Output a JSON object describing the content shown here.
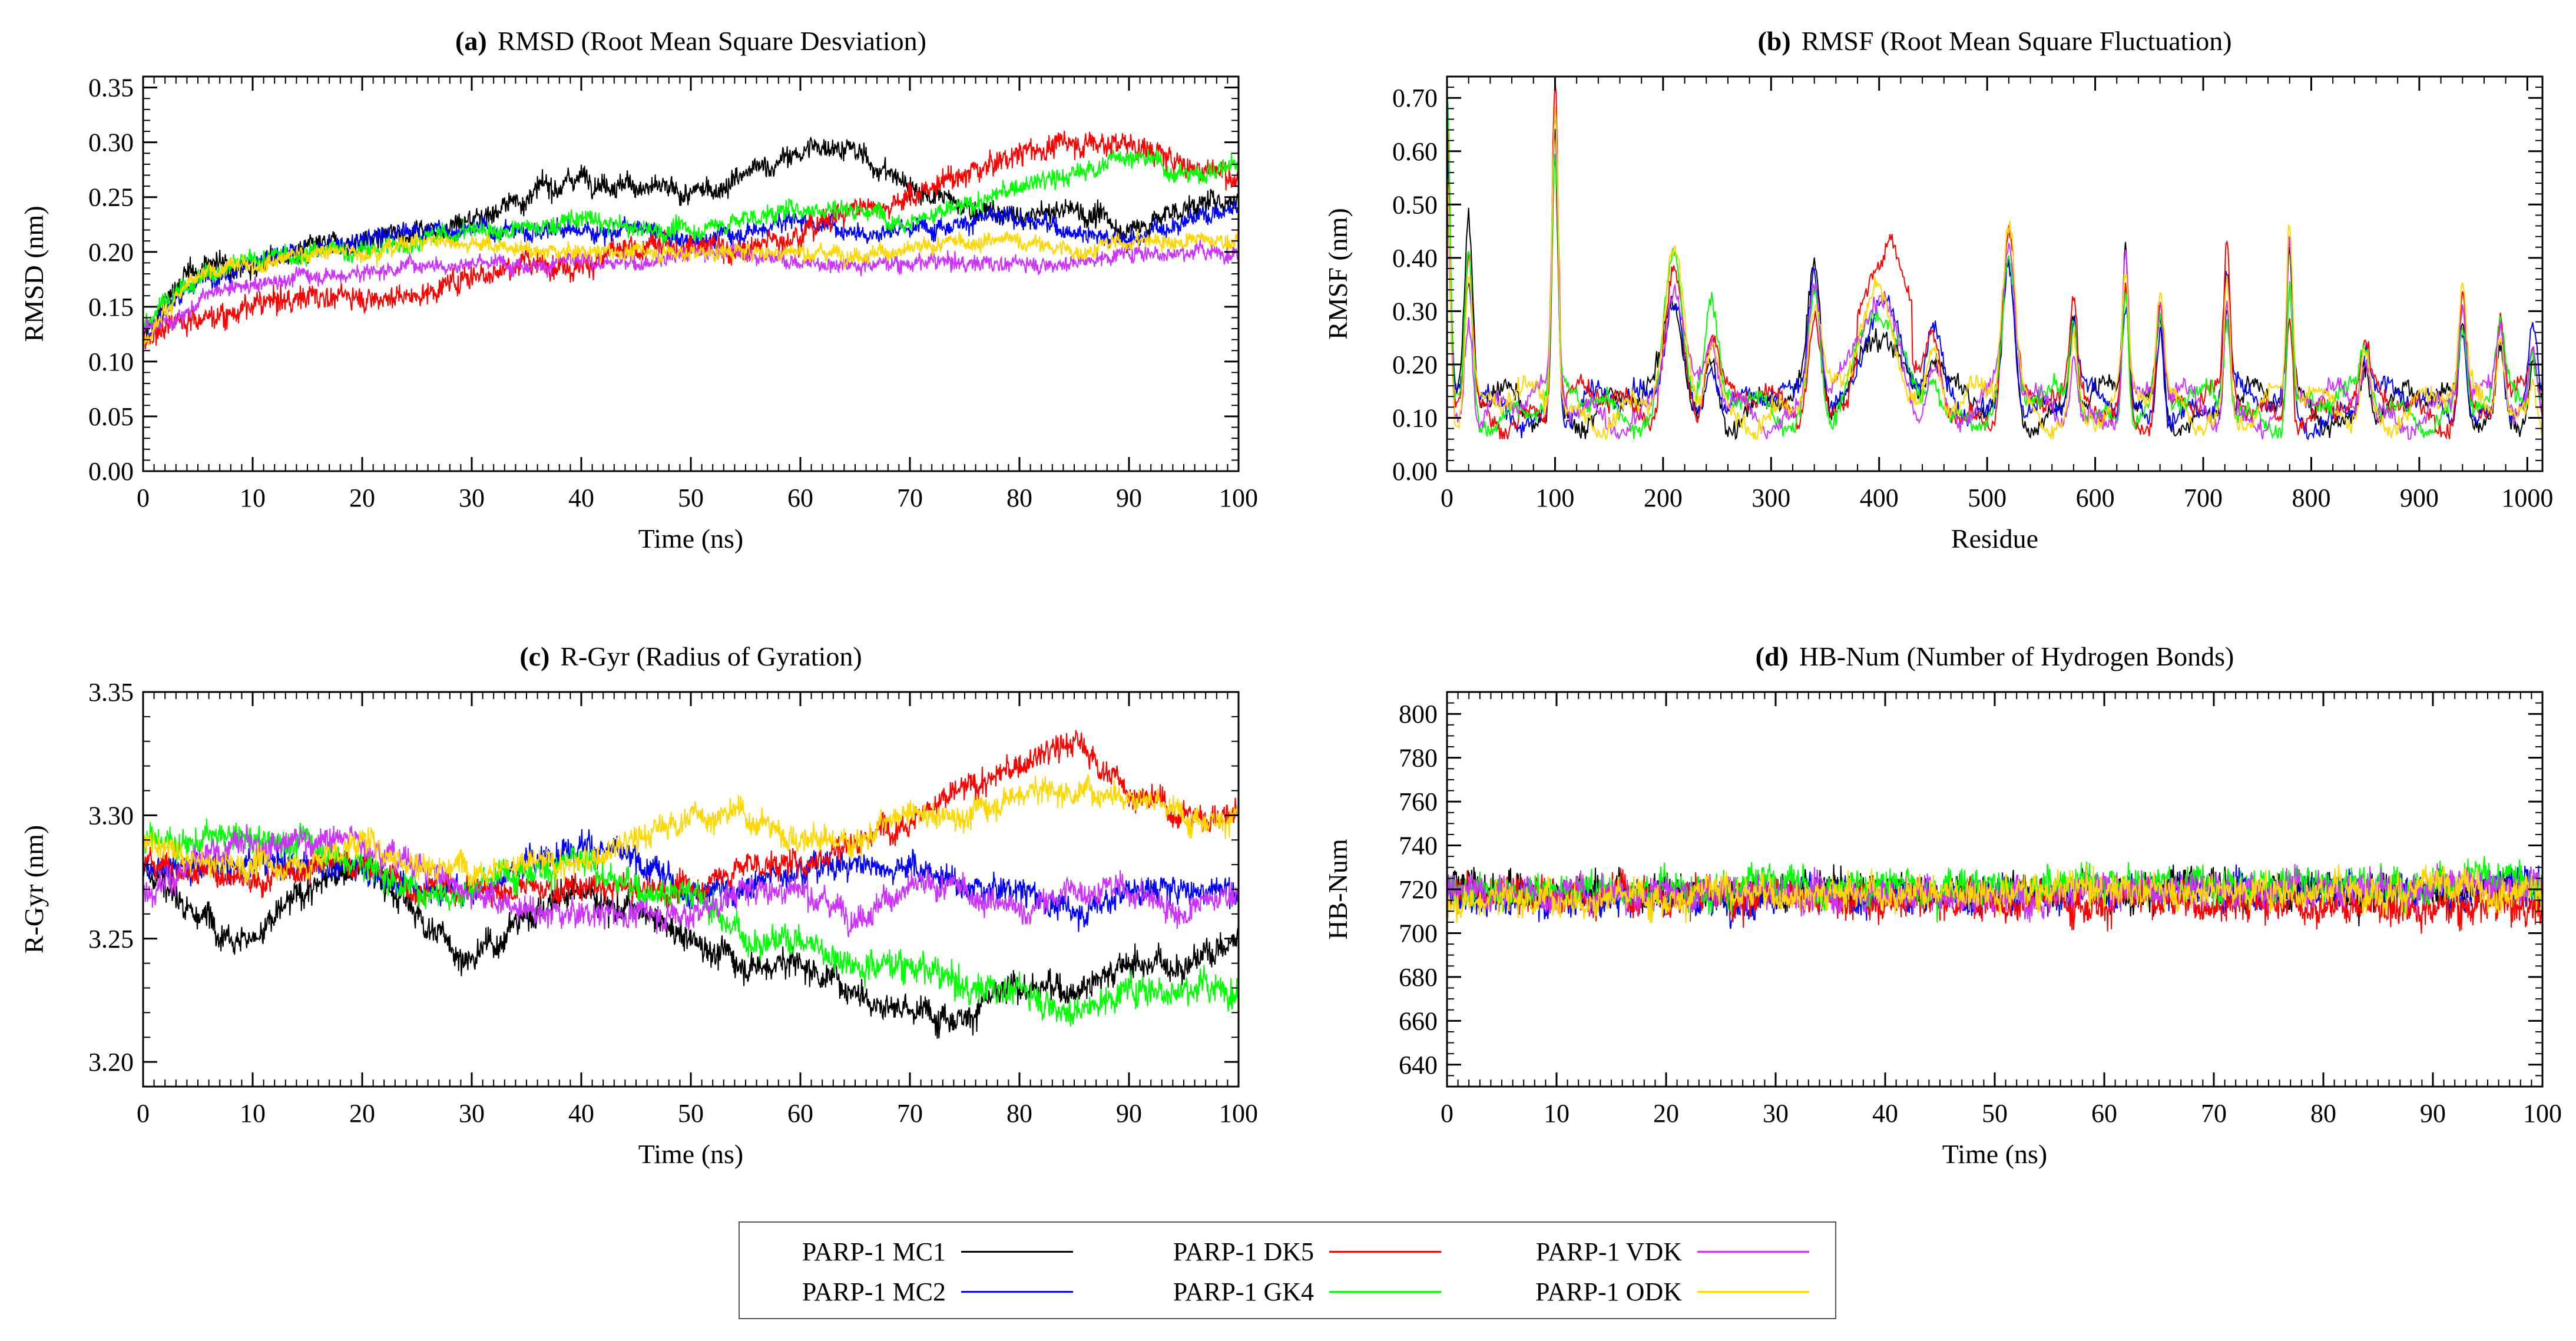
{
  "chart_data": [
    {
      "id": "a",
      "type": "line",
      "panel_label": "(a)",
      "title": "RMSD (Root Mean Square Desviation)",
      "xlabel": "Time (ns)",
      "ylabel": "RMSD (nm)",
      "xlim": [
        0,
        100
      ],
      "ylim": [
        0,
        0.36
      ],
      "xticks": [
        0,
        10,
        20,
        30,
        40,
        50,
        60,
        70,
        80,
        90,
        100
      ],
      "yticks": [
        0.0,
        0.05,
        0.1,
        0.15,
        0.2,
        0.25,
        0.3,
        0.35
      ],
      "ytick_labels": [
        "0.00",
        "0.05",
        "0.10",
        "0.15",
        "0.20",
        "0.25",
        "0.30",
        "0.35"
      ],
      "x_minor_step": 1,
      "y_minor_step": 0.01,
      "grid": false,
      "series": [
        {
          "name": "PARP-1 MC1",
          "x": [
            0,
            3,
            6,
            10,
            15,
            20,
            25,
            30,
            35,
            40,
            45,
            50,
            55,
            60,
            63,
            65,
            70,
            75,
            80,
            85,
            90,
            95,
            100
          ],
          "values": [
            0.12,
            0.17,
            0.19,
            0.19,
            0.2,
            0.21,
            0.22,
            0.23,
            0.25,
            0.27,
            0.26,
            0.25,
            0.27,
            0.29,
            0.3,
            0.29,
            0.26,
            0.24,
            0.23,
            0.24,
            0.22,
            0.24,
            0.25
          ],
          "noise": 0.015
        },
        {
          "name": "PARP-1 MC2",
          "x": [
            0,
            3,
            6,
            10,
            15,
            20,
            25,
            30,
            35,
            40,
            45,
            50,
            55,
            60,
            65,
            70,
            75,
            80,
            85,
            90,
            95,
            100
          ],
          "values": [
            0.12,
            0.16,
            0.18,
            0.19,
            0.2,
            0.21,
            0.22,
            0.22,
            0.22,
            0.22,
            0.22,
            0.21,
            0.22,
            0.23,
            0.22,
            0.22,
            0.23,
            0.23,
            0.22,
            0.21,
            0.23,
            0.24
          ],
          "noise": 0.013
        },
        {
          "name": "PARP-1 DK5",
          "x": [
            0,
            3,
            6,
            10,
            15,
            20,
            25,
            30,
            35,
            40,
            45,
            50,
            55,
            60,
            65,
            70,
            75,
            80,
            85,
            90,
            95,
            100
          ],
          "values": [
            0.12,
            0.14,
            0.14,
            0.15,
            0.16,
            0.16,
            0.16,
            0.18,
            0.19,
            0.19,
            0.2,
            0.21,
            0.2,
            0.22,
            0.24,
            0.25,
            0.27,
            0.29,
            0.3,
            0.3,
            0.28,
            0.27
          ],
          "noise": 0.016
        },
        {
          "name": "PARP-1 GK4",
          "x": [
            0,
            3,
            6,
            10,
            15,
            20,
            25,
            30,
            35,
            40,
            45,
            50,
            55,
            60,
            65,
            70,
            75,
            80,
            85,
            90,
            95,
            100
          ],
          "values": [
            0.13,
            0.17,
            0.18,
            0.19,
            0.2,
            0.2,
            0.21,
            0.22,
            0.22,
            0.23,
            0.22,
            0.22,
            0.23,
            0.24,
            0.24,
            0.23,
            0.24,
            0.26,
            0.27,
            0.29,
            0.27,
            0.28
          ],
          "noise": 0.013
        },
        {
          "name": "PARP-1 VDK",
          "x": [
            0,
            3,
            6,
            10,
            15,
            20,
            25,
            30,
            35,
            40,
            45,
            50,
            55,
            60,
            65,
            70,
            75,
            80,
            85,
            90,
            95,
            100
          ],
          "values": [
            0.13,
            0.14,
            0.16,
            0.17,
            0.18,
            0.18,
            0.19,
            0.19,
            0.19,
            0.19,
            0.19,
            0.2,
            0.2,
            0.19,
            0.19,
            0.19,
            0.19,
            0.19,
            0.19,
            0.2,
            0.2,
            0.2
          ],
          "noise": 0.011
        },
        {
          "name": "PARP-1 ODK",
          "x": [
            0,
            3,
            6,
            10,
            15,
            20,
            25,
            30,
            35,
            40,
            45,
            50,
            55,
            60,
            65,
            70,
            75,
            80,
            85,
            90,
            95,
            100
          ],
          "values": [
            0.12,
            0.16,
            0.18,
            0.19,
            0.2,
            0.2,
            0.21,
            0.21,
            0.2,
            0.2,
            0.2,
            0.2,
            0.2,
            0.2,
            0.2,
            0.2,
            0.21,
            0.21,
            0.2,
            0.21,
            0.21,
            0.21
          ],
          "noise": 0.011
        }
      ]
    },
    {
      "id": "b",
      "type": "line",
      "panel_label": "(b)",
      "title": "RMSF (Root Mean Square Fluctuation)",
      "xlabel": "Residue",
      "ylabel": "RMSF (nm)",
      "xlim": [
        0,
        1014
      ],
      "ylim": [
        0,
        0.74
      ],
      "xticks": [
        0,
        100,
        200,
        300,
        400,
        500,
        600,
        700,
        800,
        900,
        1000
      ],
      "yticks": [
        0.0,
        0.1,
        0.2,
        0.3,
        0.4,
        0.5,
        0.6,
        0.7
      ],
      "ytick_labels": [
        "0.00",
        "0.10",
        "0.20",
        "0.30",
        "0.40",
        "0.50",
        "0.60",
        "0.70"
      ],
      "x_minor_step": 20,
      "y_minor_step": 0.02,
      "grid": false,
      "baseline": 0.12,
      "peaks": [
        {
          "x": 0,
          "y": 0.62,
          "w": 4
        },
        {
          "x": 20,
          "y": 0.4,
          "w": 5
        },
        {
          "x": 100,
          "y": 0.65,
          "w": 4
        },
        {
          "x": 210,
          "y": 0.38,
          "w": 12
        },
        {
          "x": 245,
          "y": 0.25,
          "w": 8
        },
        {
          "x": 340,
          "y": 0.35,
          "w": 8
        },
        {
          "x": 400,
          "y": 0.33,
          "w": 25
        },
        {
          "x": 450,
          "y": 0.22,
          "w": 10
        },
        {
          "x": 520,
          "y": 0.42,
          "w": 8
        },
        {
          "x": 580,
          "y": 0.28,
          "w": 5
        },
        {
          "x": 628,
          "y": 0.38,
          "w": 4
        },
        {
          "x": 660,
          "y": 0.3,
          "w": 5
        },
        {
          "x": 722,
          "y": 0.36,
          "w": 4
        },
        {
          "x": 780,
          "y": 0.4,
          "w": 4
        },
        {
          "x": 850,
          "y": 0.22,
          "w": 6
        },
        {
          "x": 940,
          "y": 0.3,
          "w": 5
        },
        {
          "x": 975,
          "y": 0.26,
          "w": 5
        },
        {
          "x": 1005,
          "y": 0.22,
          "w": 5
        }
      ],
      "series": [
        {
          "name": "PARP-1 MC1",
          "noise": 0.03
        },
        {
          "name": "PARP-1 MC2",
          "noise": 0.03
        },
        {
          "name": "PARP-1 DK5",
          "noise": 0.03,
          "x": [
            380,
            400,
            410,
            430
          ],
          "values": [
            0.3,
            0.38,
            0.44,
            0.32
          ]
        },
        {
          "name": "PARP-1 GK4",
          "noise": 0.03
        },
        {
          "name": "PARP-1 VDK",
          "noise": 0.03
        },
        {
          "name": "PARP-1 ODK",
          "noise": 0.03
        }
      ]
    },
    {
      "id": "c",
      "type": "line",
      "panel_label": "(c)",
      "title": "R-Gyr (Radius of Gyration)",
      "xlabel": "Time (ns)",
      "ylabel": "R-Gyr (nm)",
      "xlim": [
        0,
        100
      ],
      "ylim": [
        3.19,
        3.35
      ],
      "xticks": [
        0,
        10,
        20,
        30,
        40,
        50,
        60,
        70,
        80,
        90,
        100
      ],
      "yticks": [
        3.2,
        3.25,
        3.3,
        3.35
      ],
      "ytick_labels": [
        "3.20",
        "3.25",
        "3.30",
        "3.35"
      ],
      "x_minor_step": 1,
      "y_minor_step": 0.01,
      "grid": false,
      "series": [
        {
          "name": "PARP-1 MC1",
          "x": [
            0,
            5,
            10,
            15,
            20,
            25,
            30,
            35,
            40,
            45,
            50,
            55,
            60,
            65,
            70,
            75,
            80,
            85,
            90,
            95,
            100
          ],
          "values": [
            3.28,
            3.26,
            3.25,
            3.27,
            3.28,
            3.26,
            3.24,
            3.26,
            3.27,
            3.26,
            3.25,
            3.24,
            3.24,
            3.23,
            3.22,
            3.22,
            3.23,
            3.23,
            3.24,
            3.24,
            3.25
          ],
          "noise": 0.009
        },
        {
          "name": "PARP-1 MC2",
          "x": [
            0,
            5,
            10,
            15,
            20,
            25,
            30,
            35,
            40,
            45,
            50,
            55,
            60,
            65,
            70,
            75,
            80,
            85,
            90,
            95,
            100
          ],
          "values": [
            3.28,
            3.28,
            3.28,
            3.28,
            3.28,
            3.27,
            3.27,
            3.28,
            3.29,
            3.28,
            3.27,
            3.27,
            3.28,
            3.28,
            3.28,
            3.27,
            3.27,
            3.26,
            3.27,
            3.27,
            3.27
          ],
          "noise": 0.008
        },
        {
          "name": "PARP-1 DK5",
          "x": [
            0,
            5,
            10,
            15,
            20,
            25,
            30,
            35,
            40,
            45,
            50,
            55,
            60,
            65,
            70,
            75,
            80,
            85,
            90,
            95,
            100
          ],
          "values": [
            3.28,
            3.28,
            3.27,
            3.28,
            3.28,
            3.27,
            3.27,
            3.27,
            3.27,
            3.27,
            3.27,
            3.28,
            3.28,
            3.29,
            3.3,
            3.31,
            3.32,
            3.33,
            3.31,
            3.3,
            3.3
          ],
          "noise": 0.008
        },
        {
          "name": "PARP-1 GK4",
          "x": [
            0,
            5,
            10,
            15,
            20,
            25,
            30,
            35,
            40,
            45,
            50,
            55,
            60,
            65,
            70,
            75,
            80,
            85,
            90,
            95,
            100
          ],
          "values": [
            3.29,
            3.29,
            3.29,
            3.29,
            3.28,
            3.27,
            3.27,
            3.28,
            3.28,
            3.27,
            3.27,
            3.25,
            3.25,
            3.24,
            3.24,
            3.23,
            3.23,
            3.22,
            3.23,
            3.23,
            3.23
          ],
          "noise": 0.009
        },
        {
          "name": "PARP-1 VDK",
          "x": [
            0,
            5,
            10,
            15,
            20,
            25,
            30,
            35,
            40,
            45,
            50,
            55,
            60,
            65,
            70,
            75,
            80,
            85,
            90,
            95,
            100
          ],
          "values": [
            3.27,
            3.28,
            3.29,
            3.29,
            3.29,
            3.28,
            3.27,
            3.26,
            3.26,
            3.26,
            3.26,
            3.27,
            3.27,
            3.26,
            3.27,
            3.27,
            3.26,
            3.27,
            3.27,
            3.26,
            3.27
          ],
          "noise": 0.008
        },
        {
          "name": "PARP-1 ODK",
          "x": [
            0,
            5,
            10,
            15,
            20,
            25,
            30,
            35,
            40,
            45,
            50,
            55,
            60,
            65,
            70,
            75,
            80,
            85,
            90,
            95,
            100
          ],
          "values": [
            3.29,
            3.28,
            3.28,
            3.28,
            3.29,
            3.28,
            3.28,
            3.28,
            3.28,
            3.29,
            3.3,
            3.3,
            3.29,
            3.29,
            3.3,
            3.3,
            3.31,
            3.31,
            3.31,
            3.3,
            3.3
          ],
          "noise": 0.008
        }
      ]
    },
    {
      "id": "d",
      "type": "line",
      "panel_label": "(d)",
      "title": "HB-Num (Number of Hydrogen Bonds)",
      "xlabel": "Time (ns)",
      "ylabel": "HB-Num",
      "xlim": [
        0,
        100
      ],
      "ylim": [
        630,
        810
      ],
      "xticks": [
        0,
        10,
        20,
        30,
        40,
        50,
        60,
        70,
        80,
        90,
        100
      ],
      "yticks": [
        640,
        660,
        680,
        700,
        720,
        740,
        760,
        780,
        800
      ],
      "ytick_labels": [
        "640",
        "660",
        "680",
        "700",
        "720",
        "740",
        "760",
        "780",
        "800"
      ],
      "x_minor_step": 1,
      "y_minor_step": 5,
      "grid": false,
      "series": [
        {
          "name": "PARP-1 MC1",
          "x": [
            0,
            50,
            100
          ],
          "values": [
            720,
            720,
            720
          ],
          "noise": 11
        },
        {
          "name": "PARP-1 MC2",
          "x": [
            0,
            50,
            100
          ],
          "values": [
            716,
            717,
            722
          ],
          "noise": 11
        },
        {
          "name": "PARP-1 DK5",
          "x": [
            0,
            50,
            100
          ],
          "values": [
            718,
            716,
            712
          ],
          "noise": 12
        },
        {
          "name": "PARP-1 GK4",
          "x": [
            0,
            50,
            100
          ],
          "values": [
            720,
            722,
            724
          ],
          "noise": 11
        },
        {
          "name": "PARP-1 VDK",
          "x": [
            0,
            50,
            100
          ],
          "values": [
            718,
            718,
            722
          ],
          "noise": 11
        },
        {
          "name": "PARP-1 ODK",
          "x": [
            0,
            50,
            100
          ],
          "values": [
            716,
            720,
            720
          ],
          "noise": 11
        }
      ]
    }
  ],
  "legend": {
    "placement": "bottom-center",
    "entries": [
      {
        "label": "PARP-1 MC1",
        "color": "#000000"
      },
      {
        "label": "PARP-1 MC2",
        "color": "#0000ff"
      },
      {
        "label": "PARP-1 DK5",
        "color": "#ff0000"
      },
      {
        "label": "PARP-1 GK4",
        "color": "#00ff00"
      },
      {
        "label": "PARP-1 VDK",
        "color": "#cc33ff"
      },
      {
        "label": "PARP-1 ODK",
        "color": "#ffd700"
      }
    ]
  }
}
